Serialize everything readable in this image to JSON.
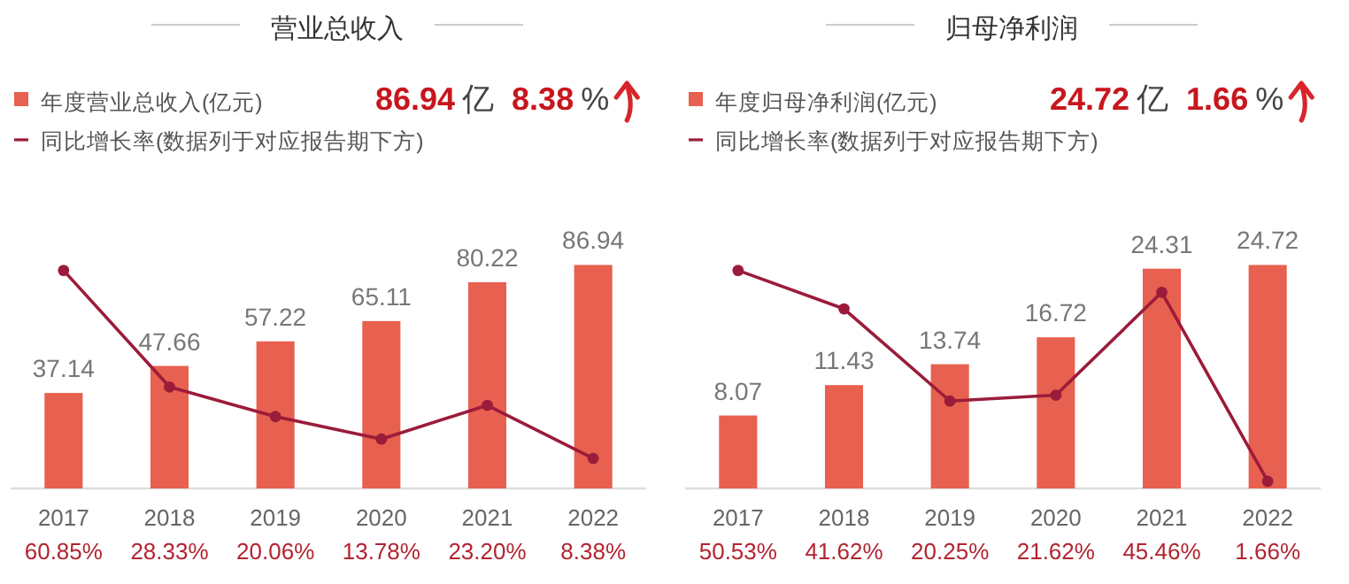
{
  "chart_data": [
    {
      "type": "bar",
      "title": "营业总收入",
      "annotations": [
        "86.94",
        "亿",
        "8.38",
        "%"
      ],
      "legend": "top left",
      "categories": [
        "2017",
        "2018",
        "2019",
        "2020",
        "2021",
        "2022"
      ],
      "tick_labels": "x",
      "marker": "circle",
      "series": [
        {
          "name": "年度营业总收入(亿元)",
          "color": "#e8604f",
          "values": [
            37.14,
            47.66,
            57.22,
            65.11,
            80.22,
            86.94
          ],
          "value_labels": [
            "37.14",
            "47.66",
            "57.22",
            "65.11",
            "80.22",
            "86.94"
          ]
        },
        {
          "name": "同比增长率(数据列于对应报告期下方)",
          "type": "line",
          "axis": "y2",
          "color": "#9b1c3a",
          "values": [
            60.85,
            28.33,
            20.06,
            13.78,
            23.2,
            8.38
          ],
          "value_labels": [
            "60.85%",
            "28.33%",
            "20.06%",
            "13.78%",
            "23.20%",
            "8.38%"
          ]
        }
      ]
    },
    {
      "type": "bar",
      "title": "归母净利润",
      "annotations": [
        "24.72",
        "亿",
        "1.66",
        "%"
      ],
      "legend": "top left",
      "categories": [
        "2017",
        "2018",
        "2019",
        "2020",
        "2021",
        "2022"
      ],
      "tick_labels": "x",
      "marker": "circle",
      "series": [
        {
          "name": "年度归母净利润(亿元)",
          "color": "#e8604f",
          "values": [
            8.07,
            11.43,
            13.74,
            16.72,
            24.31,
            24.72
          ],
          "value_labels": [
            "8.07",
            "11.43",
            "13.74",
            "16.72",
            "24.31",
            "24.72"
          ]
        },
        {
          "name": "同比增长率(数据列于对应报告期下方)",
          "type": "line",
          "axis": "y2",
          "color": "#9b1c3a",
          "values": [
            50.53,
            41.62,
            20.25,
            21.62,
            45.46,
            1.66
          ],
          "value_labels": [
            "50.53%",
            "41.62%",
            "20.25%",
            "21.62%",
            "45.46%",
            "1.66%"
          ]
        }
      ]
    }
  ]
}
